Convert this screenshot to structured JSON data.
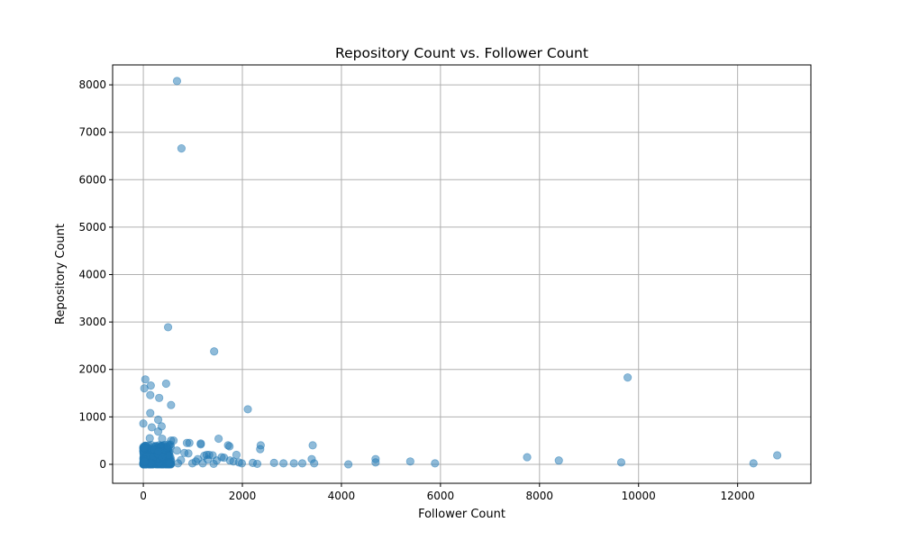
{
  "chart_data": {
    "type": "scatter",
    "title": "Repository Count vs. Follower Count",
    "xlabel": "Follower Count",
    "ylabel": "Repository Count",
    "xlim": [
      -620,
      13480
    ],
    "ylim": [
      -400,
      8420
    ],
    "xticks": [
      0,
      2000,
      4000,
      6000,
      8000,
      10000,
      12000
    ],
    "yticks": [
      0,
      1000,
      2000,
      3000,
      4000,
      5000,
      6000,
      7000,
      8000
    ],
    "grid": true,
    "marker_color": "#1f77b4",
    "marker_alpha": 0.5,
    "points": [
      [
        680,
        8080
      ],
      [
        770,
        6660
      ],
      [
        500,
        2890
      ],
      [
        1430,
        2380
      ],
      [
        9780,
        1830
      ],
      [
        40,
        1790
      ],
      [
        20,
        1600
      ],
      [
        150,
        1660
      ],
      [
        460,
        1700
      ],
      [
        140,
        1460
      ],
      [
        320,
        1400
      ],
      [
        560,
        1250
      ],
      [
        2110,
        1160
      ],
      [
        140,
        1080
      ],
      [
        300,
        940
      ],
      [
        0,
        860
      ],
      [
        370,
        800
      ],
      [
        170,
        780
      ],
      [
        300,
        690
      ],
      [
        130,
        550
      ],
      [
        380,
        540
      ],
      [
        1520,
        540
      ],
      [
        560,
        500
      ],
      [
        610,
        500
      ],
      [
        880,
        450
      ],
      [
        930,
        450
      ],
      [
        1160,
        440
      ],
      [
        1160,
        420
      ],
      [
        1710,
        400
      ],
      [
        1740,
        380
      ],
      [
        2370,
        400
      ],
      [
        3420,
        400
      ],
      [
        2360,
        320
      ],
      [
        680,
        290
      ],
      [
        830,
        240
      ],
      [
        910,
        230
      ],
      [
        1280,
        200
      ],
      [
        1330,
        200
      ],
      [
        1400,
        190
      ],
      [
        1230,
        180
      ],
      [
        1880,
        200
      ],
      [
        1580,
        150
      ],
      [
        1630,
        140
      ],
      [
        1100,
        110
      ],
      [
        1300,
        100
      ],
      [
        1480,
        80
      ],
      [
        1750,
        80
      ],
      [
        1820,
        60
      ],
      [
        1930,
        40
      ],
      [
        1990,
        20
      ],
      [
        2210,
        30
      ],
      [
        2300,
        10
      ],
      [
        2640,
        30
      ],
      [
        2830,
        20
      ],
      [
        3040,
        20
      ],
      [
        3210,
        20
      ],
      [
        3400,
        110
      ],
      [
        3450,
        20
      ],
      [
        4690,
        110
      ],
      [
        4690,
        40
      ],
      [
        4140,
        0
      ],
      [
        5390,
        60
      ],
      [
        5890,
        20
      ],
      [
        7750,
        150
      ],
      [
        8390,
        80
      ],
      [
        9650,
        40
      ],
      [
        12320,
        20
      ],
      [
        12800,
        190
      ],
      [
        700,
        20
      ],
      [
        1200,
        20
      ],
      [
        1420,
        10
      ],
      [
        990,
        20
      ],
      [
        1060,
        60
      ],
      [
        520,
        30
      ],
      [
        760,
        90
      ]
    ],
    "dense_cluster": {
      "x_range": [
        0,
        560
      ],
      "y_range": [
        0,
        420
      ],
      "count": 420
    }
  }
}
